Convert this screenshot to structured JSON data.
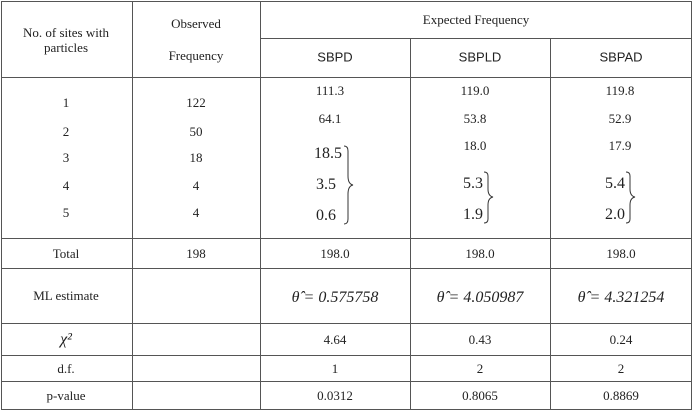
{
  "header": {
    "sites": "No. of sites with particles",
    "observed": "Observed Frequency",
    "expected": "Expected Frequency",
    "models": [
      "SBPD",
      "SBPLD",
      "SBPAD"
    ]
  },
  "rows": [
    {
      "site": "1",
      "observed": "122",
      "expected": [
        "111.3",
        "119.0",
        "119.8"
      ]
    },
    {
      "site": "2",
      "observed": "50",
      "expected": [
        "64.1",
        "53.8",
        "52.9"
      ]
    },
    {
      "site": "3",
      "observed": "18",
      "expected": [
        "18.5",
        "18.0",
        "17.9"
      ]
    },
    {
      "site": "4",
      "observed": "4",
      "expected": [
        "3.5",
        "5.3",
        "5.4"
      ]
    },
    {
      "site": "5",
      "observed": "4",
      "expected": [
        "0.6",
        "1.9",
        "2.0"
      ]
    }
  ],
  "total": {
    "label": "Total",
    "observed": "198",
    "expected": [
      "198.0",
      "198.0",
      "198.0"
    ]
  },
  "ml": {
    "label": "ML estimate",
    "values": [
      "θ̂ = 0.575758",
      "θ̂ = 4.050987",
      "θ̂ = 4.321254"
    ]
  },
  "chi": {
    "label": "χ²",
    "values": [
      "4.64",
      "0.43",
      "0.24"
    ]
  },
  "df": {
    "label": "d.f.",
    "values": [
      "1",
      "2",
      "2"
    ]
  },
  "pvalue": {
    "label": "p-value",
    "values": [
      "0.0312",
      "0.8065",
      "0.8869"
    ]
  }
}
